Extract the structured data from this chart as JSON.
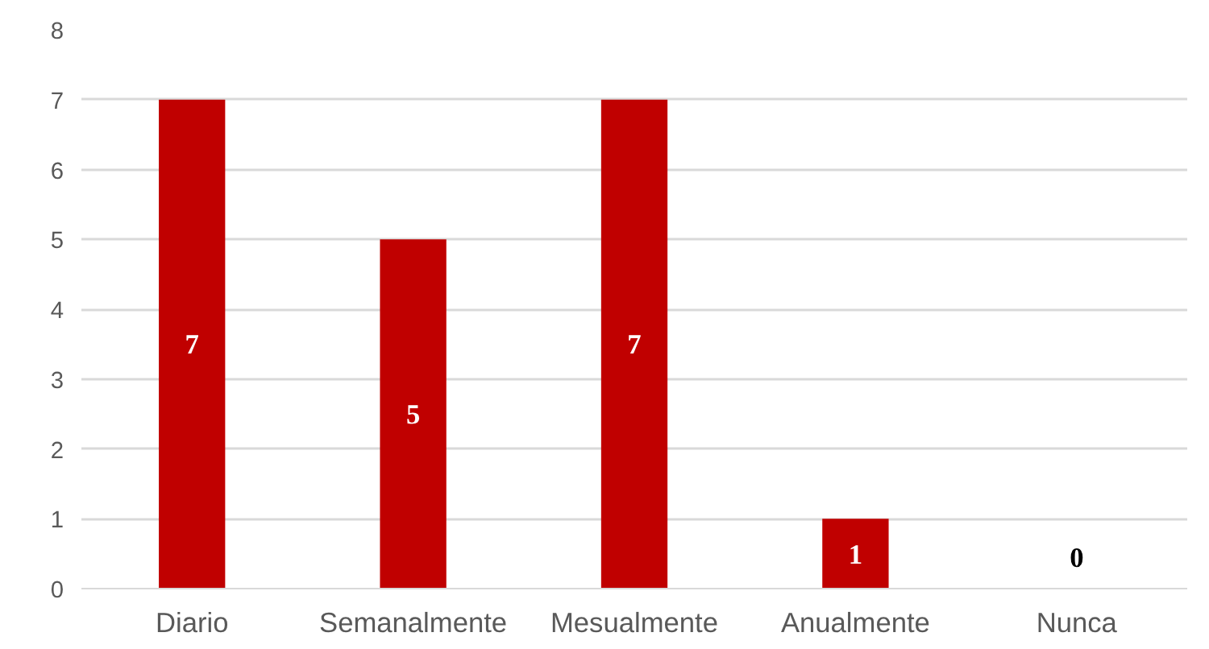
{
  "chart_data": {
    "type": "bar",
    "categories": [
      "Diario",
      "Semanalmente",
      "Mesualmente",
      "Anualmente",
      "Nunca"
    ],
    "values": [
      7,
      5,
      7,
      1,
      0
    ],
    "color": "#c00000",
    "ylim": [
      0,
      8
    ],
    "yticks": [
      0,
      1,
      2,
      3,
      4,
      5,
      6,
      7,
      8
    ],
    "grid": "y",
    "data_labels": true
  }
}
